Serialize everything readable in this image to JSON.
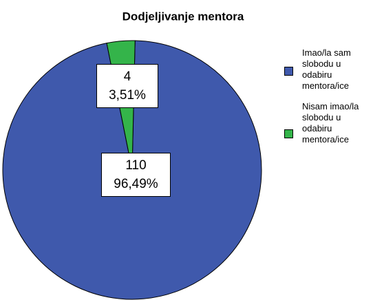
{
  "chart_data": {
    "type": "pie",
    "title": "Dodjeljivanje mentora",
    "categories": [
      "Imao/la sam slobodu u odabiru mentora/ice",
      "Nisam imao/la slobodu u odabiru mentora/ice"
    ],
    "values": [
      110,
      4
    ],
    "percent_labels": [
      "96,49%",
      "3,51%"
    ],
    "colors": [
      "#3f59ac",
      "#34b44a"
    ],
    "legend": "right"
  }
}
